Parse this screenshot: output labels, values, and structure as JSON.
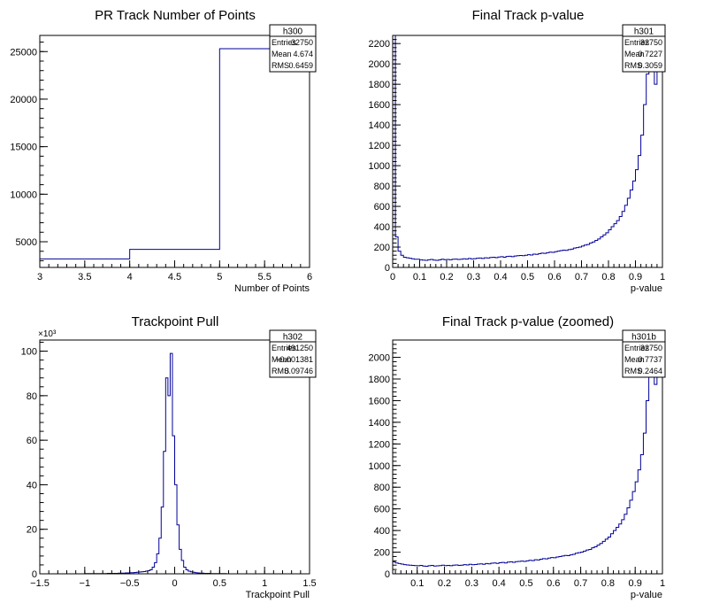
{
  "chart_data": [
    {
      "type": "histogram",
      "title": "PR Track Number of Points",
      "xlabel": "Number of Points",
      "ylabel": "",
      "xlim": [
        3,
        6
      ],
      "ylim": [
        2300,
        26700
      ],
      "xticks": [
        3,
        3.5,
        4,
        4.5,
        5,
        5.5,
        6
      ],
      "xtick_labels": [
        "3",
        "3.5",
        "4",
        "4.5",
        "5",
        "5.5",
        "6"
      ],
      "yticks": [
        5000,
        10000,
        15000,
        20000,
        25000
      ],
      "ytick_labels": [
        "5000",
        "10000",
        "15000",
        "20000",
        "25000"
      ],
      "exponent_label": "",
      "line_color": "#000099",
      "bins": {
        "edges": [
          3,
          4,
          5,
          6
        ],
        "values": [
          3200,
          4200,
          25300
        ]
      },
      "stats": {
        "name": "h300",
        "rows": [
          {
            "label": "Entries",
            "value": "32750"
          },
          {
            "label": "Mean",
            "value": "4.674"
          },
          {
            "label": "RMS",
            "value": "0.6459"
          }
        ]
      }
    },
    {
      "type": "histogram",
      "title": "Final Track p-value",
      "xlabel": "p-value",
      "ylabel": "",
      "xlim": [
        0,
        1
      ],
      "ylim": [
        0,
        2280
      ],
      "xticks": [
        0,
        0.1,
        0.2,
        0.3,
        0.4,
        0.5,
        0.6,
        0.7,
        0.8,
        0.9,
        1
      ],
      "xtick_labels": [
        "0",
        "0.1",
        "0.2",
        "0.3",
        "0.4",
        "0.5",
        "0.6",
        "0.7",
        "0.8",
        "0.9",
        "1"
      ],
      "yticks": [
        0,
        200,
        400,
        600,
        800,
        1000,
        1200,
        1400,
        1600,
        1800,
        2000,
        2200
      ],
      "ytick_labels": [
        "0",
        "200",
        "400",
        "600",
        "800",
        "1000",
        "1200",
        "1400",
        "1600",
        "1800",
        "2000",
        "2200"
      ],
      "exponent_label": "",
      "line_color": "#000099",
      "bins": {
        "start": 0,
        "width": 0.01,
        "values": [
          2280,
          300,
          160,
          120,
          100,
          95,
          90,
          85,
          80,
          80,
          75,
          72,
          70,
          75,
          78,
          72,
          70,
          74,
          80,
          76,
          78,
          75,
          80,
          82,
          78,
          80,
          85,
          82,
          88,
          84,
          86,
          90,
          92,
          88,
          95,
          92,
          98,
          100,
          96,
          102,
          105,
          100,
          108,
          110,
          106,
          112,
          115,
          118,
          115,
          120,
          125,
          122,
          130,
          128,
          135,
          140,
          138,
          145,
          150,
          148,
          155,
          160,
          165,
          170,
          168,
          175,
          180,
          190,
          195,
          200,
          210,
          220,
          225,
          240,
          250,
          265,
          280,
          300,
          320,
          340,
          370,
          400,
          430,
          460,
          500,
          550,
          610,
          680,
          760,
          850,
          960,
          1100,
          1300,
          1600,
          1900,
          2300,
          2300,
          1800,
          1950,
          2300
        ]
      },
      "stats": {
        "name": "h301",
        "rows": [
          {
            "label": "Entries",
            "value": "32750"
          },
          {
            "label": "Mean",
            "value": "0.7227"
          },
          {
            "label": "RMS",
            "value": "0.3059"
          }
        ]
      }
    },
    {
      "type": "histogram",
      "title": "Trackpoint Pull",
      "xlabel": "Trackpoint Pull",
      "ylabel": "",
      "xlim": [
        -1.5,
        1.5
      ],
      "ylim": [
        0,
        105
      ],
      "xticks": [
        -1.5,
        -1,
        -0.5,
        0,
        0.5,
        1,
        1.5
      ],
      "xtick_labels": [
        "−1.5",
        "−1",
        "−0.5",
        "0",
        "0.5",
        "1",
        "1.5"
      ],
      "yticks": [
        0,
        20,
        40,
        60,
        80,
        100
      ],
      "ytick_labels": [
        "0",
        "20",
        "40",
        "60",
        "80",
        "100"
      ],
      "exponent_label": "×10³",
      "line_color": "#000099",
      "bins": {
        "start": -1.5,
        "width": 0.025,
        "values": [
          0,
          0,
          0,
          0,
          0,
          0,
          0,
          0,
          0,
          0,
          0,
          0,
          0,
          0,
          0,
          0,
          0,
          0,
          0,
          0,
          0.1,
          0.1,
          0.1,
          0.1,
          0.1,
          0.1,
          0.1,
          0.1,
          0.1,
          0.1,
          0.2,
          0.2,
          0.2,
          0.2,
          0.2,
          0.3,
          0.3,
          0.3,
          0.4,
          0.4,
          0.5,
          0.5,
          0.6,
          0.7,
          0.8,
          0.9,
          1.0,
          1.2,
          1.4,
          1.8,
          3,
          5,
          9,
          16,
          30,
          55,
          88,
          80,
          99,
          62,
          40,
          22,
          11,
          6,
          3,
          1.8,
          1.2,
          0.9,
          0.7,
          0.5,
          0.4,
          0.3,
          0.3,
          0.2,
          0.2,
          0.2,
          0.1,
          0.1,
          0.1,
          0.1,
          0.1,
          0.1,
          0.1,
          0,
          0,
          0,
          0,
          0,
          0,
          0,
          0,
          0,
          0,
          0,
          0,
          0,
          0,
          0,
          0,
          0,
          0,
          0,
          0,
          0,
          0,
          0,
          0,
          0,
          0,
          0,
          0,
          0,
          0,
          0,
          0,
          0,
          0,
          0,
          0,
          0
        ]
      },
      "stats": {
        "name": "h302",
        "rows": [
          {
            "label": "Entries",
            "value": "491250"
          },
          {
            "label": "Mean",
            "value": "−0.001381"
          },
          {
            "label": "RMS",
            "value": "0.09746"
          }
        ]
      }
    },
    {
      "type": "histogram",
      "title": "Final Track p-value (zoomed)",
      "xlabel": "p-value",
      "ylabel": "",
      "xlim": [
        0.01,
        1
      ],
      "ylim": [
        0,
        2160
      ],
      "xticks": [
        0.1,
        0.2,
        0.3,
        0.4,
        0.5,
        0.6,
        0.7,
        0.8,
        0.9,
        1
      ],
      "xtick_labels": [
        "0.1",
        "0.2",
        "0.3",
        "0.4",
        "0.5",
        "0.6",
        "0.7",
        "0.8",
        "0.9",
        "1"
      ],
      "yticks": [
        0,
        200,
        400,
        600,
        800,
        1000,
        1200,
        1400,
        1600,
        1800,
        2000
      ],
      "ytick_labels": [
        "0",
        "200",
        "400",
        "600",
        "800",
        "1000",
        "1200",
        "1400",
        "1600",
        "1800",
        "2000"
      ],
      "exponent_label": "",
      "line_color": "#000099",
      "bins": {
        "start": 0.01,
        "width": 0.01,
        "values": [
          110,
          100,
          95,
          90,
          85,
          82,
          80,
          78,
          76,
          75,
          78,
          72,
          70,
          75,
          78,
          72,
          74,
          76,
          80,
          76,
          78,
          75,
          80,
          82,
          78,
          80,
          85,
          82,
          88,
          84,
          86,
          90,
          92,
          88,
          95,
          92,
          98,
          100,
          96,
          102,
          105,
          100,
          108,
          110,
          106,
          112,
          115,
          118,
          115,
          120,
          125,
          122,
          130,
          128,
          135,
          140,
          138,
          145,
          150,
          148,
          155,
          160,
          165,
          170,
          168,
          175,
          180,
          190,
          195,
          200,
          210,
          220,
          225,
          240,
          250,
          265,
          280,
          300,
          320,
          340,
          370,
          400,
          430,
          460,
          500,
          550,
          610,
          680,
          760,
          850,
          960,
          1100,
          1300,
          1600,
          1900,
          2160,
          1750,
          1900,
          2160
        ]
      },
      "stats": {
        "name": "h301b",
        "rows": [
          {
            "label": "Entries",
            "value": "32750"
          },
          {
            "label": "Mean",
            "value": "0.7737"
          },
          {
            "label": "RMS",
            "value": "0.2464"
          }
        ]
      }
    }
  ]
}
